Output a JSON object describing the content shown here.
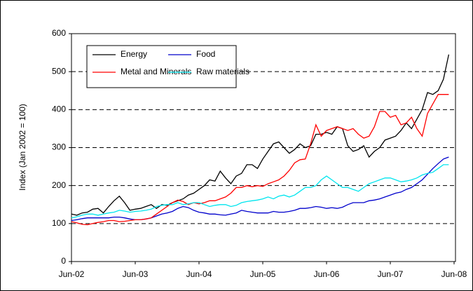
{
  "chart_data": {
    "type": "line",
    "ylabel": "Index (Jan 2002 = 100)",
    "categories": [
      "Jun-02",
      null,
      null,
      null,
      null,
      null,
      null,
      null,
      null,
      null,
      null,
      null,
      "Jun-03",
      null,
      null,
      null,
      null,
      null,
      null,
      null,
      null,
      null,
      null,
      null,
      "Jun-04",
      null,
      null,
      null,
      null,
      null,
      null,
      null,
      null,
      null,
      null,
      null,
      "Jun-05",
      null,
      null,
      null,
      null,
      null,
      null,
      null,
      null,
      null,
      null,
      null,
      "Jun-06",
      null,
      null,
      null,
      null,
      null,
      null,
      null,
      null,
      null,
      null,
      null,
      "Jun-07",
      null,
      null,
      null,
      null,
      null,
      null,
      null,
      null,
      null,
      null,
      null,
      "Jun-08"
    ],
    "series": [
      {
        "name": "Energy",
        "color": "#000000",
        "values": [
          125,
          122,
          128,
          130,
          138,
          140,
          128,
          145,
          160,
          172,
          155,
          135,
          138,
          140,
          145,
          150,
          140,
          150,
          148,
          155,
          160,
          165,
          175,
          180,
          190,
          200,
          215,
          212,
          238,
          220,
          205,
          225,
          232,
          255,
          255,
          245,
          270,
          290,
          310,
          315,
          300,
          285,
          295,
          310,
          300,
          305,
          335,
          335,
          340,
          335,
          355,
          350,
          305,
          290,
          295,
          305,
          275,
          290,
          300,
          320,
          325,
          330,
          345,
          365,
          350,
          375,
          400,
          445,
          440,
          450,
          480,
          545,
          null
        ]
      },
      {
        "name": "Food",
        "color": "#0000cc",
        "values": [
          108,
          110,
          113,
          115,
          115,
          115,
          115,
          115,
          117,
          117,
          115,
          112,
          110,
          110,
          112,
          115,
          120,
          125,
          128,
          132,
          140,
          145,
          142,
          135,
          130,
          128,
          125,
          125,
          123,
          122,
          125,
          128,
          135,
          132,
          130,
          128,
          128,
          128,
          132,
          130,
          130,
          132,
          135,
          140,
          140,
          142,
          145,
          143,
          140,
          142,
          140,
          143,
          150,
          155,
          155,
          155,
          160,
          162,
          165,
          170,
          175,
          180,
          183,
          190,
          195,
          205,
          215,
          230,
          245,
          258,
          270,
          275,
          null
        ]
      },
      {
        "name": "Metal and Minerals",
        "color": "#ff0000",
        "values": [
          105,
          102,
          98,
          97,
          100,
          103,
          105,
          108,
          108,
          105,
          106,
          108,
          110,
          110,
          112,
          115,
          125,
          135,
          145,
          155,
          162,
          158,
          150,
          155,
          152,
          155,
          160,
          160,
          165,
          170,
          180,
          195,
          195,
          200,
          197,
          200,
          198,
          205,
          210,
          215,
          225,
          240,
          260,
          268,
          270,
          310,
          360,
          330,
          345,
          350,
          355,
          350,
          345,
          350,
          335,
          325,
          330,
          355,
          395,
          395,
          380,
          385,
          360,
          365,
          380,
          350,
          330,
          390,
          415,
          440,
          440,
          440,
          null
        ]
      },
      {
        "name": "Raw materials",
        "color": "#00e5ee",
        "values": [
          115,
          118,
          122,
          125,
          125,
          122,
          125,
          128,
          130,
          135,
          133,
          130,
          132,
          133,
          135,
          138,
          145,
          148,
          150,
          150,
          155,
          150,
          152,
          155,
          155,
          150,
          145,
          148,
          150,
          150,
          145,
          148,
          155,
          158,
          160,
          162,
          165,
          170,
          165,
          172,
          175,
          170,
          175,
          185,
          195,
          195,
          200,
          215,
          225,
          215,
          205,
          195,
          195,
          190,
          185,
          195,
          205,
          210,
          215,
          220,
          220,
          215,
          210,
          212,
          215,
          220,
          228,
          232,
          235,
          245,
          255,
          255,
          null
        ]
      }
    ],
    "ylim": [
      0,
      600
    ],
    "yticks": [
      0,
      100,
      200,
      300,
      400,
      500,
      600
    ],
    "grid": true,
    "legend": "upper left"
  }
}
